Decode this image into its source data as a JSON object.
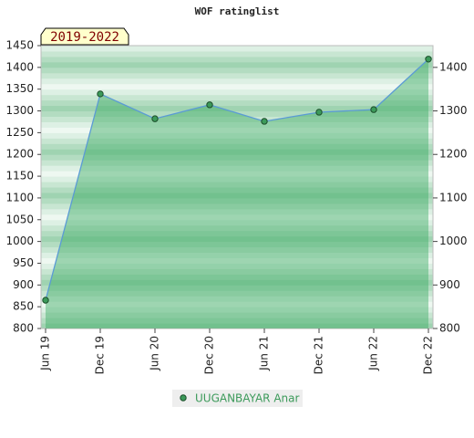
{
  "chart_data": {
    "type": "line",
    "title": "WOF ratinglist",
    "annotation": "2019-2022",
    "categories": [
      "Jun 19",
      "Dec 19",
      "Jun 20",
      "Dec 20",
      "Jun 21",
      "Dec 21",
      "Jun 22",
      "Dec 22"
    ],
    "series": [
      {
        "name": "UUGANBAYAR Anar",
        "color": "#5b9bd5",
        "values": [
          865,
          1339,
          1282,
          1314,
          1276,
          1297,
          1303,
          1419
        ]
      }
    ],
    "ylim": [
      800,
      1450
    ],
    "yticks": [
      800,
      850,
      900,
      950,
      1000,
      1050,
      1100,
      1150,
      1200,
      1250,
      1300,
      1350,
      1400,
      1450
    ],
    "y2lim": [
      800,
      1450
    ],
    "y2ticks": [
      800,
      900,
      1000,
      1100,
      1200,
      1300,
      1400
    ]
  }
}
